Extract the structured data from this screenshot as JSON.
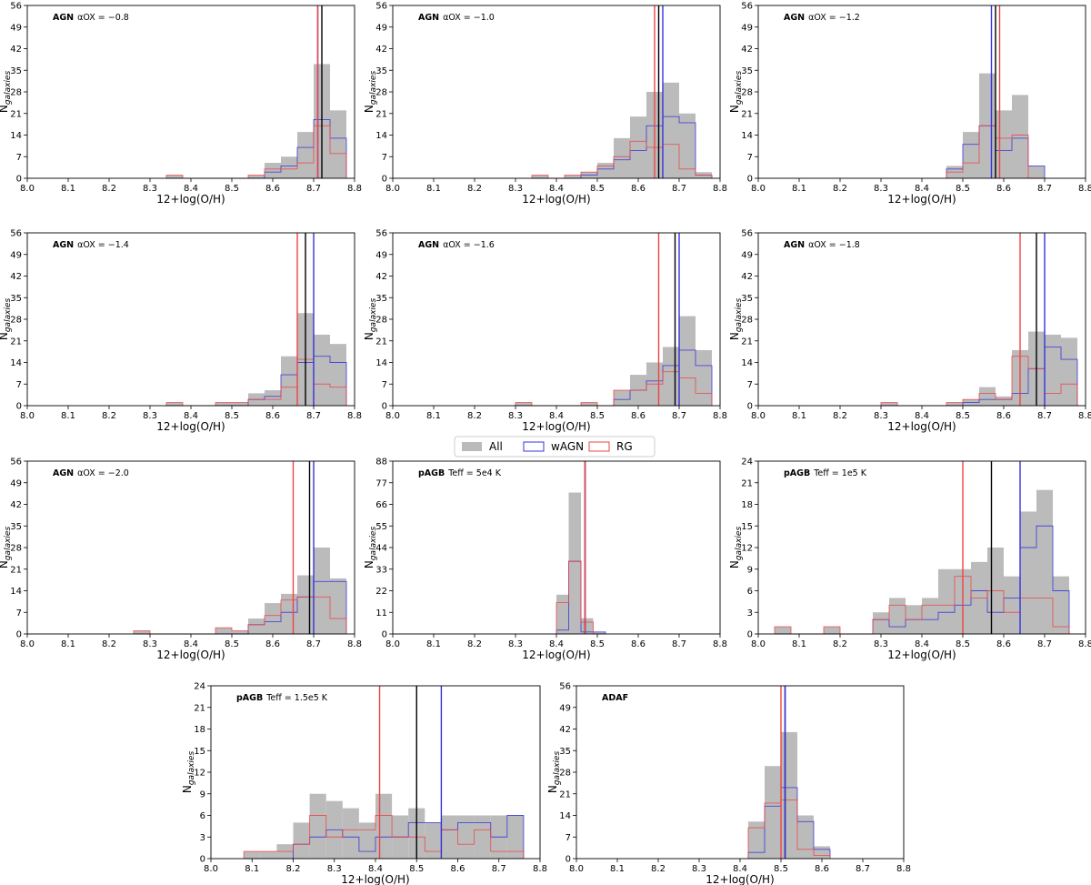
{
  "legend": {
    "entries": [
      {
        "label": "All",
        "color": "#bbbbbb",
        "style": "filled"
      },
      {
        "label": "wAGN",
        "color": "#3333dd",
        "style": "step"
      },
      {
        "label": "RG",
        "color": "#ee4444",
        "style": "step"
      }
    ]
  },
  "chart_data": [
    {
      "type": "histogram",
      "annotation_bold": "AGN",
      "annotation_rest": "αOX = −0.8",
      "xlabel": "12+log(O/H)",
      "ylabel": "Ngalaxies",
      "xlim": [
        8.0,
        8.8
      ],
      "ylim": [
        0,
        56
      ],
      "yticks": [
        0,
        7,
        14,
        21,
        28,
        35,
        42,
        49,
        56
      ],
      "bin_edges": [
        8.34,
        8.38,
        8.42,
        8.46,
        8.5,
        8.54,
        8.58,
        8.62,
        8.66,
        8.7,
        8.74,
        8.78
      ],
      "series": [
        {
          "name": "All",
          "values": [
            1,
            0,
            0,
            0,
            0,
            1,
            5,
            7,
            15,
            37,
            22
          ]
        },
        {
          "name": "wAGN",
          "values": [
            0,
            0,
            0,
            0,
            0,
            0,
            2,
            4,
            10,
            19,
            13
          ]
        },
        {
          "name": "RG",
          "values": [
            1,
            0,
            0,
            0,
            0,
            1,
            3,
            3,
            5,
            17,
            8
          ]
        }
      ],
      "medians": {
        "All": 8.72,
        "wAGN": 8.71,
        "RG": 8.71
      }
    },
    {
      "type": "histogram",
      "annotation_bold": "AGN",
      "annotation_rest": "αOX = −1.0",
      "xlabel": "12+log(O/H)",
      "ylabel": "Ngalaxies",
      "xlim": [
        8.0,
        8.8
      ],
      "ylim": [
        0,
        56
      ],
      "yticks": [
        0,
        7,
        14,
        21,
        28,
        35,
        42,
        49,
        56
      ],
      "bin_edges": [
        8.34,
        8.38,
        8.42,
        8.46,
        8.5,
        8.54,
        8.58,
        8.62,
        8.66,
        8.7,
        8.74,
        8.78
      ],
      "series": [
        {
          "name": "All",
          "values": [
            1,
            0,
            1,
            2,
            5,
            13,
            20,
            28,
            31,
            21,
            2
          ]
        },
        {
          "name": "wAGN",
          "values": [
            0,
            0,
            0,
            1,
            3,
            6,
            9,
            17,
            20,
            18,
            1
          ]
        },
        {
          "name": "RG",
          "values": [
            1,
            0,
            1,
            2,
            4,
            7,
            12,
            10,
            11,
            3,
            1
          ]
        }
      ],
      "medians": {
        "All": 8.65,
        "wAGN": 8.66,
        "RG": 8.64
      }
    },
    {
      "type": "histogram",
      "annotation_bold": "AGN",
      "annotation_rest": "αOX = −1.2",
      "xlabel": "12+log(O/H)",
      "ylabel": "Ngalaxies",
      "xlim": [
        8.0,
        8.8
      ],
      "ylim": [
        0,
        56
      ],
      "yticks": [
        0,
        7,
        14,
        21,
        28,
        35,
        42,
        49,
        56
      ],
      "bin_edges": [
        8.46,
        8.5,
        8.54,
        8.58,
        8.62,
        8.66,
        8.7
      ],
      "series": [
        {
          "name": "All",
          "values": [
            4,
            15,
            34,
            22,
            27,
            4
          ]
        },
        {
          "name": "wAGN",
          "values": [
            3,
            11,
            17,
            9,
            13,
            4
          ]
        },
        {
          "name": "RG",
          "values": [
            2,
            5,
            17,
            13,
            14,
            0
          ]
        }
      ],
      "medians": {
        "All": 8.58,
        "wAGN": 8.57,
        "RG": 8.59
      }
    },
    {
      "type": "histogram",
      "annotation_bold": "AGN",
      "annotation_rest": "αOX = −1.4",
      "xlabel": "12+log(O/H)",
      "ylabel": "Ngalaxies",
      "xlim": [
        8.0,
        8.8
      ],
      "ylim": [
        0,
        56
      ],
      "yticks": [
        0,
        7,
        14,
        21,
        28,
        35,
        42,
        49,
        56
      ],
      "bin_edges": [
        8.34,
        8.38,
        8.42,
        8.46,
        8.5,
        8.54,
        8.58,
        8.62,
        8.66,
        8.7,
        8.74,
        8.78
      ],
      "series": [
        {
          "name": "All",
          "values": [
            1,
            0,
            0,
            1,
            1,
            4,
            5,
            16,
            30,
            23,
            20
          ]
        },
        {
          "name": "wAGN",
          "values": [
            0,
            0,
            0,
            0,
            0,
            2,
            3,
            10,
            14,
            16,
            14
          ]
        },
        {
          "name": "RG",
          "values": [
            1,
            0,
            0,
            1,
            1,
            2,
            2,
            6,
            15,
            7,
            6
          ]
        }
      ],
      "medians": {
        "All": 8.68,
        "wAGN": 8.7,
        "RG": 8.66
      }
    },
    {
      "type": "histogram",
      "annotation_bold": "AGN",
      "annotation_rest": "αOX = −1.6",
      "xlabel": "12+log(O/H)",
      "ylabel": "Ngalaxies",
      "xlim": [
        8.0,
        8.8
      ],
      "ylim": [
        0,
        56
      ],
      "yticks": [
        0,
        7,
        14,
        21,
        28,
        35,
        42,
        49,
        56
      ],
      "bin_edges": [
        8.3,
        8.34,
        8.38,
        8.42,
        8.46,
        8.5,
        8.54,
        8.58,
        8.62,
        8.66,
        8.7,
        8.74,
        8.78
      ],
      "series": [
        {
          "name": "All",
          "values": [
            1,
            0,
            0,
            0,
            1,
            0,
            5,
            10,
            14,
            19,
            29,
            18
          ]
        },
        {
          "name": "wAGN",
          "values": [
            0,
            0,
            0,
            0,
            0,
            0,
            2,
            5,
            8,
            13,
            18,
            13
          ]
        },
        {
          "name": "RG",
          "values": [
            1,
            0,
            0,
            0,
            1,
            0,
            5,
            5,
            7,
            11,
            9,
            4
          ]
        }
      ],
      "medians": {
        "All": 8.69,
        "wAGN": 8.7,
        "RG": 8.65
      }
    },
    {
      "type": "histogram",
      "annotation_bold": "AGN",
      "annotation_rest": "αOX = −1.8",
      "xlabel": "12+log(O/H)",
      "ylabel": "Ngalaxies",
      "xlim": [
        8.0,
        8.8
      ],
      "ylim": [
        0,
        56
      ],
      "yticks": [
        0,
        7,
        14,
        21,
        28,
        35,
        42,
        49,
        56
      ],
      "bin_edges": [
        8.3,
        8.34,
        8.38,
        8.42,
        8.46,
        8.5,
        8.54,
        8.58,
        8.62,
        8.66,
        8.7,
        8.74,
        8.78
      ],
      "series": [
        {
          "name": "All",
          "values": [
            1,
            0,
            0,
            0,
            1,
            2,
            6,
            3,
            18,
            24,
            23,
            22
          ]
        },
        {
          "name": "wAGN",
          "values": [
            0,
            0,
            0,
            0,
            0,
            1,
            2,
            2,
            4,
            12,
            19,
            15
          ]
        },
        {
          "name": "RG",
          "values": [
            1,
            0,
            0,
            0,
            1,
            2,
            4,
            2,
            16,
            12,
            4,
            7
          ]
        }
      ],
      "medians": {
        "All": 8.68,
        "wAGN": 8.7,
        "RG": 8.64
      }
    },
    {
      "type": "histogram",
      "annotation_bold": "AGN",
      "annotation_rest": "αOX = −2.0",
      "xlabel": "12+log(O/H)",
      "ylabel": "Ngalaxies",
      "xlim": [
        8.0,
        8.8
      ],
      "ylim": [
        0,
        56
      ],
      "yticks": [
        0,
        7,
        14,
        21,
        28,
        35,
        42,
        49,
        56
      ],
      "bin_edges": [
        8.26,
        8.3,
        8.34,
        8.38,
        8.42,
        8.46,
        8.5,
        8.54,
        8.58,
        8.62,
        8.66,
        8.7,
        8.74,
        8.78
      ],
      "series": [
        {
          "name": "All",
          "values": [
            1,
            0,
            0,
            0,
            0,
            2,
            1,
            5,
            10,
            13,
            19,
            28,
            18
          ]
        },
        {
          "name": "wAGN",
          "values": [
            0,
            0,
            0,
            0,
            0,
            0,
            0,
            3,
            4,
            7,
            12,
            17,
            17
          ]
        },
        {
          "name": "RG",
          "values": [
            1,
            0,
            0,
            0,
            0,
            2,
            1,
            3,
            6,
            11,
            12,
            12,
            5
          ]
        }
      ],
      "medians": {
        "All": 8.69,
        "wAGN": 8.7,
        "RG": 8.65
      }
    },
    {
      "type": "histogram",
      "annotation_bold": "pAGB",
      "annotation_rest": "Teff = 5e4 K",
      "xlabel": "12+log(O/H)",
      "ylabel": "Ngalaxies",
      "xlim": [
        8.0,
        8.8
      ],
      "ylim": [
        0,
        88
      ],
      "yticks": [
        0,
        11,
        22,
        33,
        44,
        55,
        66,
        77,
        88
      ],
      "bin_edges": [
        8.4,
        8.43,
        8.46,
        8.49,
        8.52
      ],
      "series": [
        {
          "name": "All",
          "values": [
            20,
            72,
            8,
            1
          ]
        },
        {
          "name": "wAGN",
          "values": [
            2,
            37,
            1,
            1
          ]
        },
        {
          "name": "RG",
          "values": [
            16,
            37,
            6,
            0
          ]
        }
      ],
      "medians": {
        "All": 8.47,
        "wAGN": 8.47,
        "RG": 8.47
      }
    },
    {
      "type": "histogram",
      "annotation_bold": "pAGB",
      "annotation_rest": "Teff = 1e5 K",
      "xlabel": "12+log(O/H)",
      "ylabel": "Ngalaxies",
      "xlim": [
        8.0,
        8.8
      ],
      "ylim": [
        0,
        24
      ],
      "yticks": [
        0,
        3,
        6,
        9,
        12,
        15,
        18,
        21,
        24
      ],
      "bin_edges": [
        8.04,
        8.08,
        8.12,
        8.16,
        8.2,
        8.24,
        8.28,
        8.32,
        8.36,
        8.4,
        8.44,
        8.48,
        8.52,
        8.56,
        8.6,
        8.64,
        8.68,
        8.72,
        8.76
      ],
      "series": [
        {
          "name": "All",
          "values": [
            1,
            0,
            0,
            1,
            0,
            0,
            3,
            5,
            4,
            5,
            9,
            9,
            10,
            12,
            8,
            17,
            20,
            8
          ]
        },
        {
          "name": "wAGN",
          "values": [
            0,
            0,
            0,
            0,
            0,
            0,
            2,
            1,
            2,
            2,
            3,
            4,
            6,
            3,
            5,
            12,
            15,
            6
          ]
        },
        {
          "name": "RG",
          "values": [
            1,
            0,
            0,
            1,
            0,
            0,
            2,
            4,
            2,
            4,
            4,
            8,
            5,
            6,
            3,
            5,
            5,
            1
          ]
        }
      ],
      "medians": {
        "All": 8.57,
        "wAGN": 8.64,
        "RG": 8.5
      }
    },
    {
      "type": "histogram",
      "annotation_bold": "pAGB",
      "annotation_rest": "Teff = 1.5e5 K",
      "xlabel": "12+log(O/H)",
      "ylabel": "Ngalaxies",
      "xlim": [
        8.0,
        8.8
      ],
      "ylim": [
        0,
        24
      ],
      "yticks": [
        0,
        3,
        6,
        9,
        12,
        15,
        18,
        21,
        24
      ],
      "bin_edges": [
        8.08,
        8.12,
        8.16,
        8.2,
        8.24,
        8.28,
        8.32,
        8.36,
        8.4,
        8.44,
        8.48,
        8.52,
        8.56,
        8.6,
        8.64,
        8.68,
        8.72,
        8.76
      ],
      "series": [
        {
          "name": "All",
          "values": [
            1,
            1,
            2,
            5,
            9,
            8,
            7,
            5,
            9,
            6,
            7,
            5,
            6,
            6,
            6,
            6,
            6
          ]
        },
        {
          "name": "wAGN",
          "values": [
            0,
            0,
            0,
            2,
            3,
            4,
            3,
            1,
            3,
            3,
            5,
            5,
            4,
            5,
            5,
            3,
            6
          ]
        },
        {
          "name": "RG",
          "values": [
            1,
            1,
            1,
            2,
            6,
            3,
            4,
            4,
            6,
            3,
            3,
            1,
            4,
            2,
            4,
            1,
            1
          ]
        }
      ],
      "medians": {
        "All": 8.5,
        "wAGN": 8.56,
        "RG": 8.41
      }
    },
    {
      "type": "histogram",
      "annotation_bold": "ADAF",
      "annotation_rest": "",
      "xlabel": "12+log(O/H)",
      "ylabel": "Ngalaxies",
      "xlim": [
        8.0,
        8.8
      ],
      "ylim": [
        0,
        56
      ],
      "yticks": [
        0,
        7,
        14,
        21,
        28,
        35,
        42,
        49,
        56
      ],
      "bin_edges": [
        8.42,
        8.46,
        8.5,
        8.54,
        8.58,
        8.62
      ],
      "series": [
        {
          "name": "All",
          "values": [
            12,
            30,
            41,
            14,
            4
          ]
        },
        {
          "name": "wAGN",
          "values": [
            2,
            17,
            23,
            12,
            3
          ]
        },
        {
          "name": "RG",
          "values": [
            10,
            18,
            19,
            3,
            1
          ]
        }
      ],
      "medians": {
        "All": 8.51,
        "wAGN": 8.51,
        "RG": 8.5
      }
    }
  ],
  "colors": {
    "All": "#bbbbbb",
    "wAGN": "#3333dd",
    "RG": "#ee4444",
    "median_All": "#000000"
  }
}
